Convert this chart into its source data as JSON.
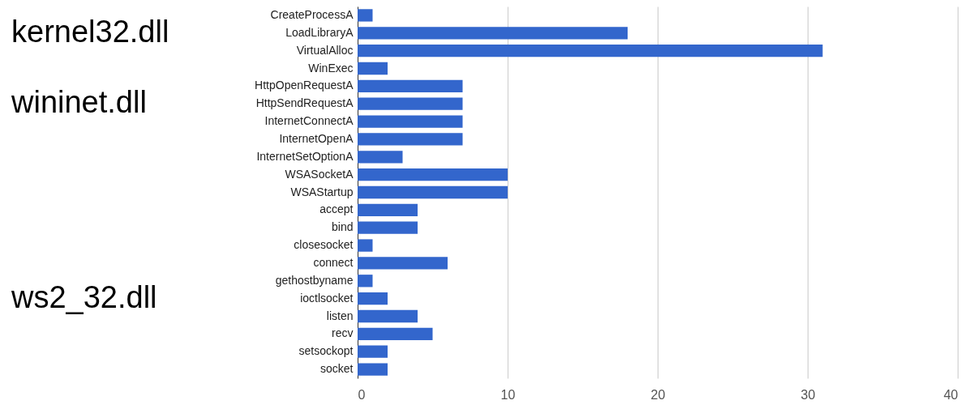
{
  "chart_data": {
    "type": "bar",
    "orientation": "horizontal",
    "categories": [
      "CreateProcessA",
      "LoadLibraryA",
      "VirtualAlloc",
      "WinExec",
      "HttpOpenRequestA",
      "HttpSendRequestA",
      "InternetConnectA",
      "InternetOpenA",
      "InternetSetOptionA",
      "WSASocketA",
      "WSAStartup",
      "accept",
      "bind",
      "closesocket",
      "connect",
      "gethostbyname",
      "ioctlsocket",
      "listen",
      "recv",
      "setsockopt",
      "socket"
    ],
    "values": [
      1,
      18,
      31,
      2,
      7,
      7,
      7,
      7,
      3,
      10,
      10,
      4,
      4,
      1,
      6,
      1,
      2,
      4,
      5,
      2,
      2
    ],
    "color": "#3366cc",
    "xlim": [
      0,
      40
    ],
    "xticks": [
      0,
      10,
      20,
      30,
      40
    ],
    "grid": "x",
    "annotations": [
      "kernel32.dll",
      "wininet.dll",
      "ws2_32.dll"
    ]
  }
}
